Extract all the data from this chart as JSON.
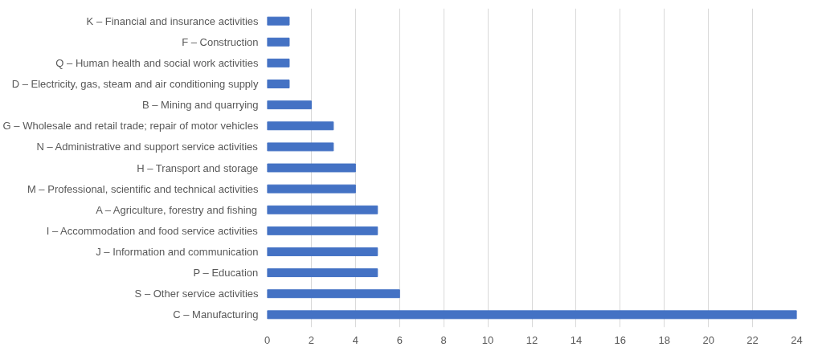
{
  "chart_data": {
    "type": "bar",
    "orientation": "horizontal",
    "categories": [
      "K – Financial and insurance activities",
      "F – Construction",
      "Q – Human health and social work activities",
      "D – Electricity, gas, steam and air conditioning supply",
      "B – Mining and quarrying",
      "G – Wholesale and retail trade; repair of motor vehicles",
      "N – Administrative and support service activities",
      "H – Transport and storage",
      "M – Professional, scientific and technical activities",
      "A – Agriculture, forestry and fishing",
      "I – Accommodation and food service activities",
      "J – Information and communication",
      "P – Education",
      "S – Other service activities",
      "C – Manufacturing"
    ],
    "values": [
      1,
      1,
      1,
      1,
      2,
      3,
      3,
      4,
      4,
      5,
      5,
      5,
      5,
      6,
      24
    ],
    "color": "#4472c4",
    "xlim": [
      0,
      24
    ],
    "xticks": [
      0,
      2,
      4,
      6,
      8,
      10,
      12,
      14,
      16,
      18,
      20,
      22,
      24
    ],
    "grid": "x"
  }
}
